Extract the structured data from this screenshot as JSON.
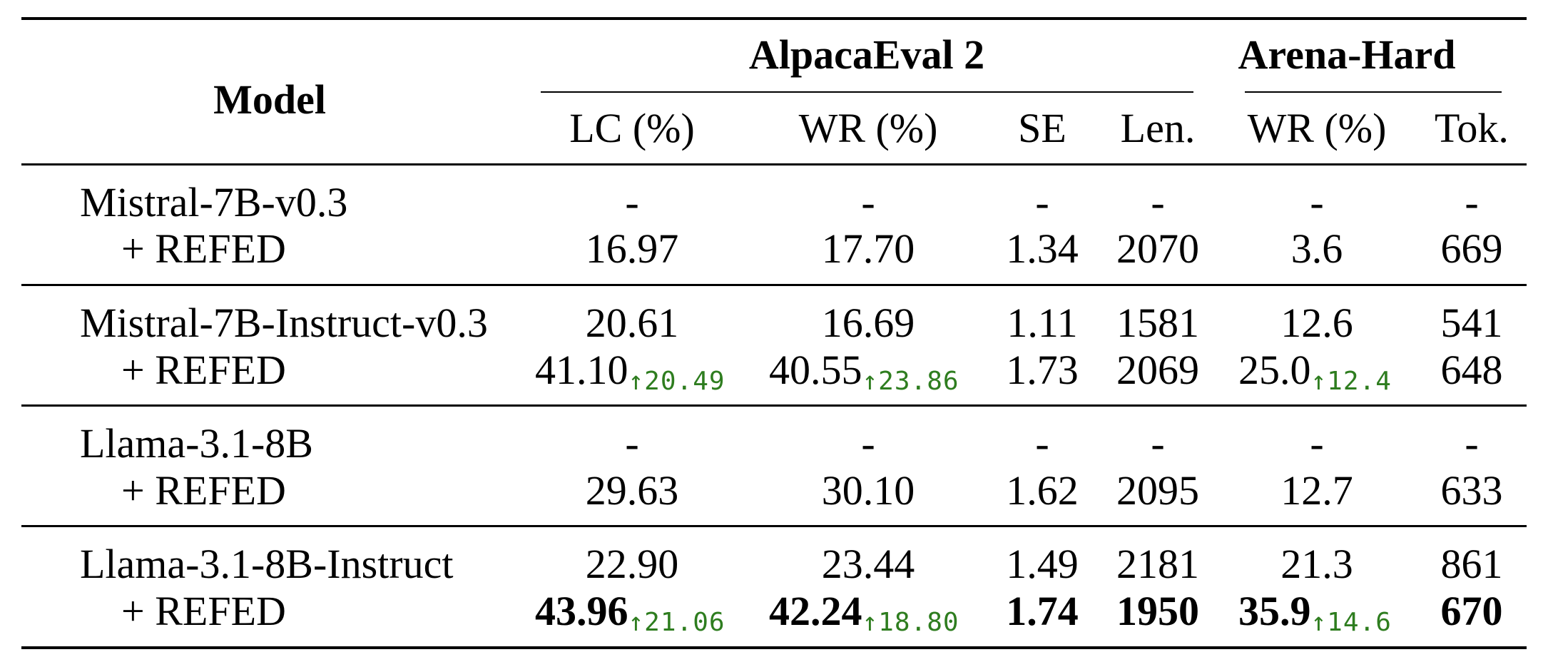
{
  "header": {
    "model": "Model",
    "group_alpaca": "AlpacaEval 2",
    "group_arena": "Arena-Hard",
    "columns": [
      "LC (%)",
      "WR (%)",
      "SE",
      "Len.",
      "WR (%)",
      "Tok."
    ]
  },
  "rows": [
    {
      "model": "Mistral-7B-v0.3",
      "cells": [
        "-",
        "-",
        "-",
        "-",
        "-",
        "-"
      ]
    },
    {
      "model": "+ REFED",
      "cells": [
        "16.97",
        "17.70",
        "1.34",
        "2070",
        "3.6",
        "669"
      ]
    },
    {
      "model": "Mistral-7B-Instruct-v0.3",
      "cells": [
        "20.61",
        "16.69",
        "1.11",
        "1581",
        "12.6",
        "541"
      ]
    },
    {
      "model": "+ REFED",
      "cells": [
        "41.10",
        "40.55",
        "1.73",
        "2069",
        "25.0",
        "648"
      ],
      "deltas": [
        "↑20.49",
        "↑23.86",
        "",
        "",
        "↑12.4",
        ""
      ]
    },
    {
      "model": "Llama-3.1-8B",
      "cells": [
        "-",
        "-",
        "-",
        "-",
        "-",
        "-"
      ]
    },
    {
      "model": "+ REFED",
      "cells": [
        "29.63",
        "30.10",
        "1.62",
        "2095",
        "12.7",
        "633"
      ]
    },
    {
      "model": "Llama-3.1-8B-Instruct",
      "cells": [
        "22.90",
        "23.44",
        "1.49",
        "2181",
        "21.3",
        "861"
      ]
    },
    {
      "model": "+ REFED",
      "cells": [
        "43.96",
        "42.24",
        "1.74",
        "1950",
        "35.9",
        "670"
      ],
      "deltas": [
        "↑21.06",
        "↑18.80",
        "",
        "",
        "↑14.6",
        ""
      ],
      "bold": true
    }
  ],
  "colors": {
    "delta": "#2e7d1f"
  }
}
